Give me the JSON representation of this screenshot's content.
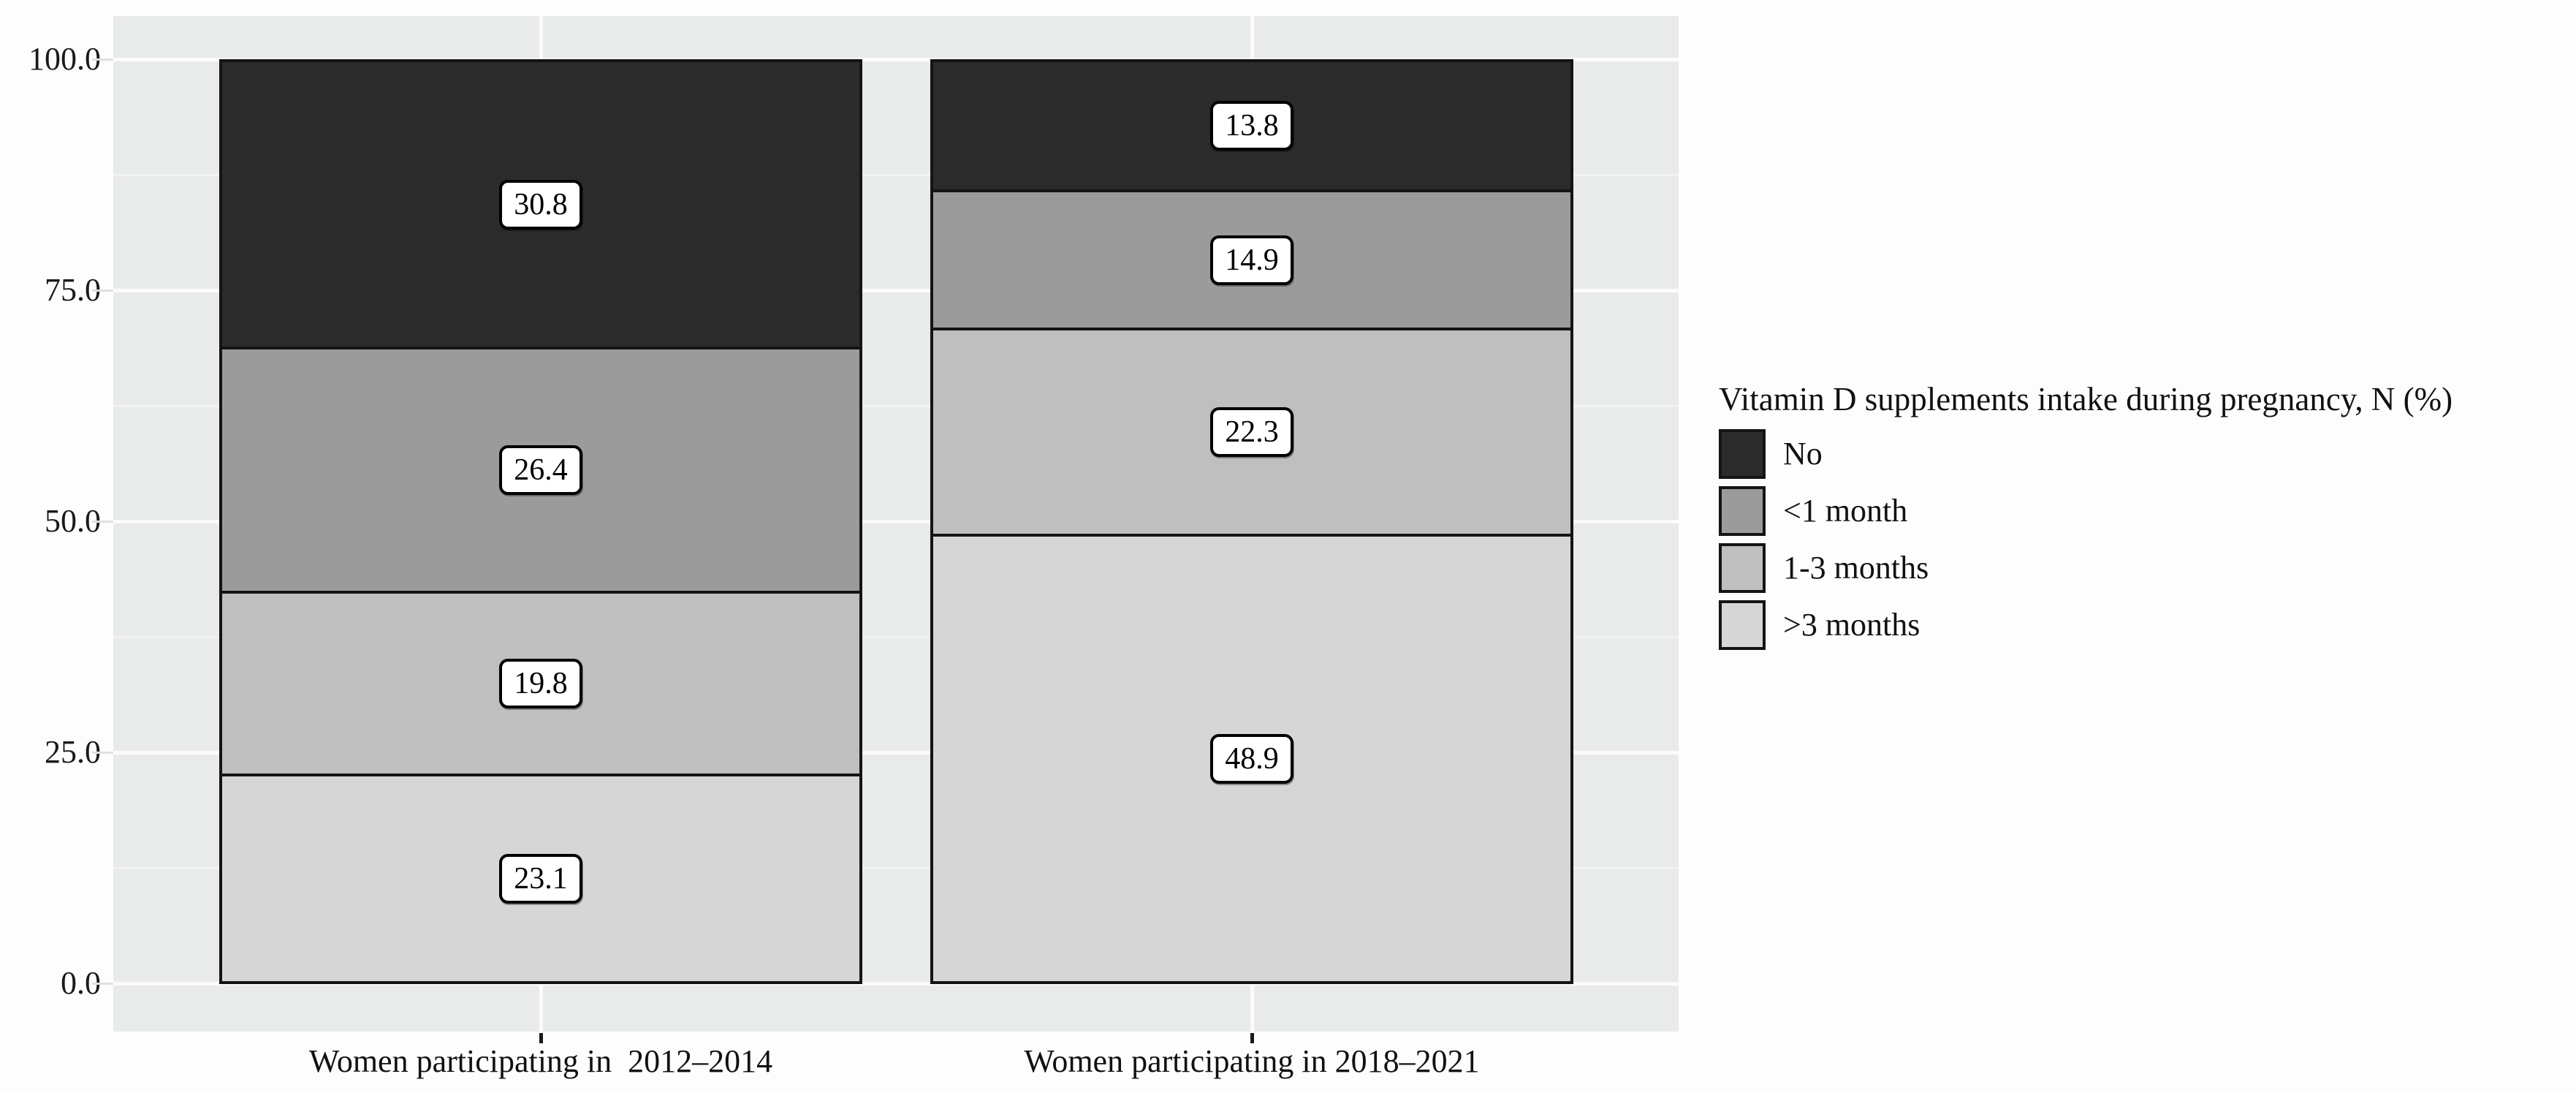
{
  "figure": {
    "background": "#fdfdfd",
    "panel_background": "#e9ebea",
    "gridline_major_color": "#fafbfa",
    "gridline_minor_color": "#f1f3f2",
    "bar_border_color": "#141414"
  },
  "y_axis": {
    "tick_labels": [
      "100.0",
      "75.0",
      "50.0",
      "25.0",
      "0.0"
    ],
    "tick_values": [
      100,
      75,
      50,
      25,
      0
    ],
    "minor_tick_values": [
      87.5,
      62.5,
      37.5,
      12.5
    ]
  },
  "x_axis": {
    "categories": [
      "Women participating in  2012–2014",
      "Women participating in 2018–2021"
    ]
  },
  "legend": {
    "title": "Vitamin D supplements intake during pregnancy, N (%)"
  },
  "chart_data": {
    "type": "bar",
    "stacked": true,
    "title": "",
    "xlabel": "",
    "ylabel": "",
    "categories": [
      "Women participating in  2012–2014",
      "Women participating in 2018–2021"
    ],
    "series": [
      {
        "name": "No",
        "values": [
          30.8,
          13.8
        ],
        "color": "#2b2b2b",
        "texture": "tex-dark"
      },
      {
        "name": "<1 month",
        "values": [
          26.4,
          14.9
        ],
        "color": "#9b9b9b",
        "texture": ""
      },
      {
        "name": "1-3 months",
        "values": [
          19.8,
          22.3
        ],
        "color": "#bfbfbf",
        "texture": "tex-light"
      },
      {
        "name": ">3 months",
        "values": [
          23.1,
          48.9
        ],
        "color": "#d6d6d6",
        "texture": "tex-light"
      }
    ],
    "value_labels": true,
    "value_label_format": "one_decimal",
    "ylim": [
      0,
      100
    ],
    "grid": true,
    "legend_position": "right",
    "legend_title": "Vitamin D supplements intake during pregnancy, N (%)"
  }
}
